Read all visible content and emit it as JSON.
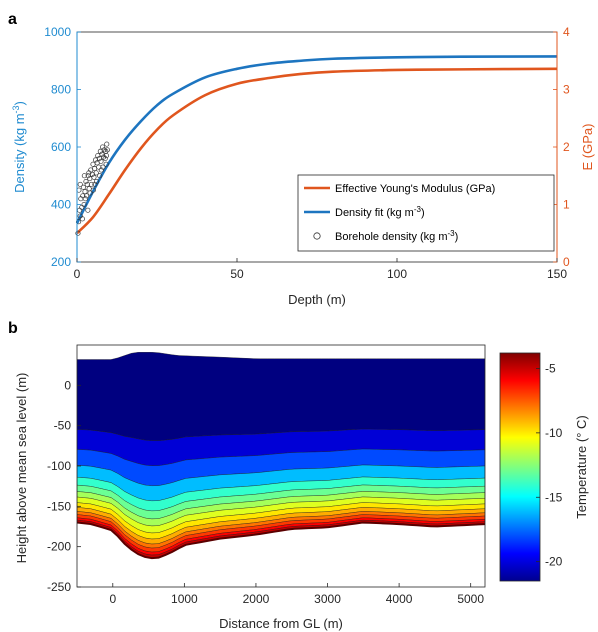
{
  "panels": {
    "a": "a",
    "b": "b"
  },
  "chart_data": [
    {
      "type": "line",
      "panel": "a",
      "xlabel": "Depth (m)",
      "ylabel_left": "Density (kg m",
      "ylabel_left_sup": "-3",
      "ylabel_left_close": ")",
      "ylabel_right": "E (GPa)",
      "xlim": [
        0,
        150
      ],
      "ylim_left": [
        200,
        1000
      ],
      "ylim_right": [
        0,
        4
      ],
      "xticks": [
        "0",
        "50",
        "100",
        "150"
      ],
      "yticks_left": [
        "200",
        "400",
        "600",
        "800",
        "1000"
      ],
      "yticks_right": [
        "0",
        "1",
        "2",
        "3",
        "4"
      ],
      "left_axis_color": "#1f8bd0",
      "right_axis_color": "#e0561e",
      "legend_position": "lower-right",
      "legend": [
        {
          "label": "Effective Young's Modulus (GPa)",
          "color": "#e0561e",
          "kind": "line"
        },
        {
          "label": "Density fit (kg m",
          "sup": "-3",
          "close": ")",
          "color": "#1d75c0",
          "kind": "line"
        },
        {
          "label": "Borehole density (kg m",
          "sup": "-3",
          "close": ")",
          "color": "#333333",
          "kind": "marker"
        }
      ],
      "series": [
        {
          "name": "Density fit",
          "axis": "left",
          "color": "#1d75c0",
          "x": [
            0,
            5,
            10,
            15,
            20,
            25,
            30,
            40,
            50,
            60,
            70,
            80,
            100,
            120,
            150
          ],
          "y": [
            335,
            445,
            545,
            625,
            690,
            745,
            785,
            842,
            872,
            890,
            900,
            907,
            912,
            914,
            915
          ]
        },
        {
          "name": "Effective Young's Modulus",
          "axis": "right",
          "color": "#e0561e",
          "x": [
            0,
            5,
            10,
            15,
            20,
            25,
            30,
            40,
            50,
            60,
            70,
            80,
            100,
            120,
            150
          ],
          "y": [
            0.5,
            0.78,
            1.18,
            1.6,
            1.98,
            2.3,
            2.55,
            2.9,
            3.1,
            3.2,
            3.27,
            3.31,
            3.34,
            3.35,
            3.36
          ]
        },
        {
          "name": "Borehole density",
          "axis": "left",
          "color": "#333333",
          "kind": "scatter",
          "x": [
            0.3,
            0.5,
            0.8,
            1.0,
            1.2,
            1.5,
            1.8,
            2.0,
            2.2,
            2.5,
            2.8,
            3.0,
            3.2,
            3.5,
            3.8,
            4.0,
            4.3,
            4.5,
            4.8,
            5.0,
            5.3,
            5.5,
            5.8,
            6.0,
            6.3,
            6.5,
            6.8,
            7.0,
            7.3,
            7.5,
            7.8,
            8.0,
            8.3,
            8.5,
            8.8,
            9.0,
            9.3,
            9.5,
            1.0,
            1.7,
            2.6,
            3.4,
            4.1,
            5.1,
            6.1,
            7.1,
            8.1,
            9.1,
            0.6,
            2.3,
            3.7,
            5.6,
            7.6,
            9.2
          ],
          "y": [
            300,
            340,
            380,
            360,
            420,
            390,
            430,
            460,
            400,
            445,
            480,
            430,
            470,
            500,
            455,
            490,
            520,
            470,
            505,
            540,
            495,
            525,
            555,
            510,
            545,
            570,
            530,
            560,
            585,
            550,
            575,
            600,
            565,
            590,
            560,
            585,
            610,
            590,
            470,
            350,
            420,
            380,
            440,
            450,
            480,
            500,
            530,
            540,
            450,
            500,
            510,
            470,
            520,
            570
          ]
        }
      ]
    },
    {
      "type": "heatmap",
      "panel": "b",
      "xlabel": "Distance from GL (m)",
      "ylabel": "Height above mean sea level (m)",
      "colorbar_label": "Temperature (° C)",
      "xlim": [
        -500,
        5200
      ],
      "ylim": [
        -250,
        50
      ],
      "xticks": [
        "0",
        "1000",
        "2000",
        "3000",
        "4000",
        "5000"
      ],
      "yticks": [
        "-250",
        "-200",
        "-150",
        "-100",
        "-50",
        "0"
      ],
      "colorbar_ticks": [
        "-20",
        "-15",
        "-10",
        "-5"
      ],
      "colorbar_range": [
        -21.5,
        -3.8
      ],
      "surface": {
        "x": [
          -500,
          0,
          300,
          600,
          900,
          1500,
          2000,
          3000,
          4000,
          5200
        ],
        "y": [
          32,
          32,
          41,
          41,
          37,
          35,
          33,
          33,
          33,
          33
        ]
      },
      "bed": {
        "x": [
          -500,
          -300,
          0,
          200,
          400,
          600,
          800,
          1000,
          1500,
          2000,
          2500,
          3000,
          3500,
          4000,
          4500,
          5200
        ],
        "y": [
          -170,
          -172,
          -180,
          -200,
          -212,
          -215,
          -208,
          -198,
          -190,
          -185,
          -178,
          -176,
          -170,
          -172,
          -175,
          -172
        ]
      },
      "isotherm_levels": [
        -20,
        -18,
        -16,
        -14,
        -13,
        -12,
        -11,
        -10,
        -9,
        -8,
        -7,
        -6,
        -5
      ],
      "isotherm_heights_at_far_field": [
        -55,
        -80,
        -100,
        -115,
        -125,
        -133,
        -140,
        -147,
        -153,
        -158,
        -162,
        -166,
        -169
      ]
    }
  ]
}
